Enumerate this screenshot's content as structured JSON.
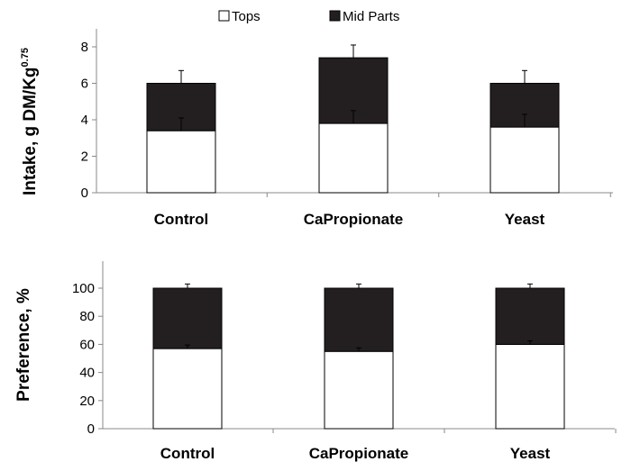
{
  "legend": {
    "tops_label": "Tops",
    "mid_label": "Mid Parts",
    "tops_color": "#ffffff",
    "mid_color": "#231f20"
  },
  "chart_data": [
    {
      "type": "bar",
      "stacked": true,
      "categories": [
        "Control",
        "CaPropionate",
        "Yeast"
      ],
      "series": [
        {
          "name": "Tops",
          "values": [
            3.4,
            3.8,
            3.6
          ],
          "error": [
            0.7,
            0.7,
            0.7
          ],
          "color": "#ffffff"
        },
        {
          "name": "Mid Parts",
          "values": [
            2.6,
            3.6,
            2.4
          ],
          "error": [
            0.7,
            0.7,
            0.7
          ],
          "color": "#231f20"
        }
      ],
      "ylabel_main": "Intake,  g DM/Kg",
      "ylabel_sup": "0.75",
      "ylim": [
        0,
        8
      ],
      "yticks": [
        0,
        2,
        4,
        6,
        8
      ],
      "grid": false,
      "legend_position": "top"
    },
    {
      "type": "bar",
      "stacked": true,
      "categories": [
        "Control",
        "CaPropionate",
        "Yeast"
      ],
      "series": [
        {
          "name": "Tops",
          "values": [
            57,
            55,
            60
          ],
          "error": [
            2.5,
            2.5,
            2.5
          ],
          "color": "#ffffff"
        },
        {
          "name": "Mid Parts",
          "values": [
            43,
            45,
            40
          ],
          "error": [
            3,
            3,
            3
          ],
          "color": "#231f20"
        }
      ],
      "ylabel_main": "Preference, %",
      "ylim": [
        0,
        100
      ],
      "yticks": [
        0,
        20,
        40,
        60,
        80,
        100
      ],
      "grid": false,
      "legend_position": "none"
    }
  ]
}
